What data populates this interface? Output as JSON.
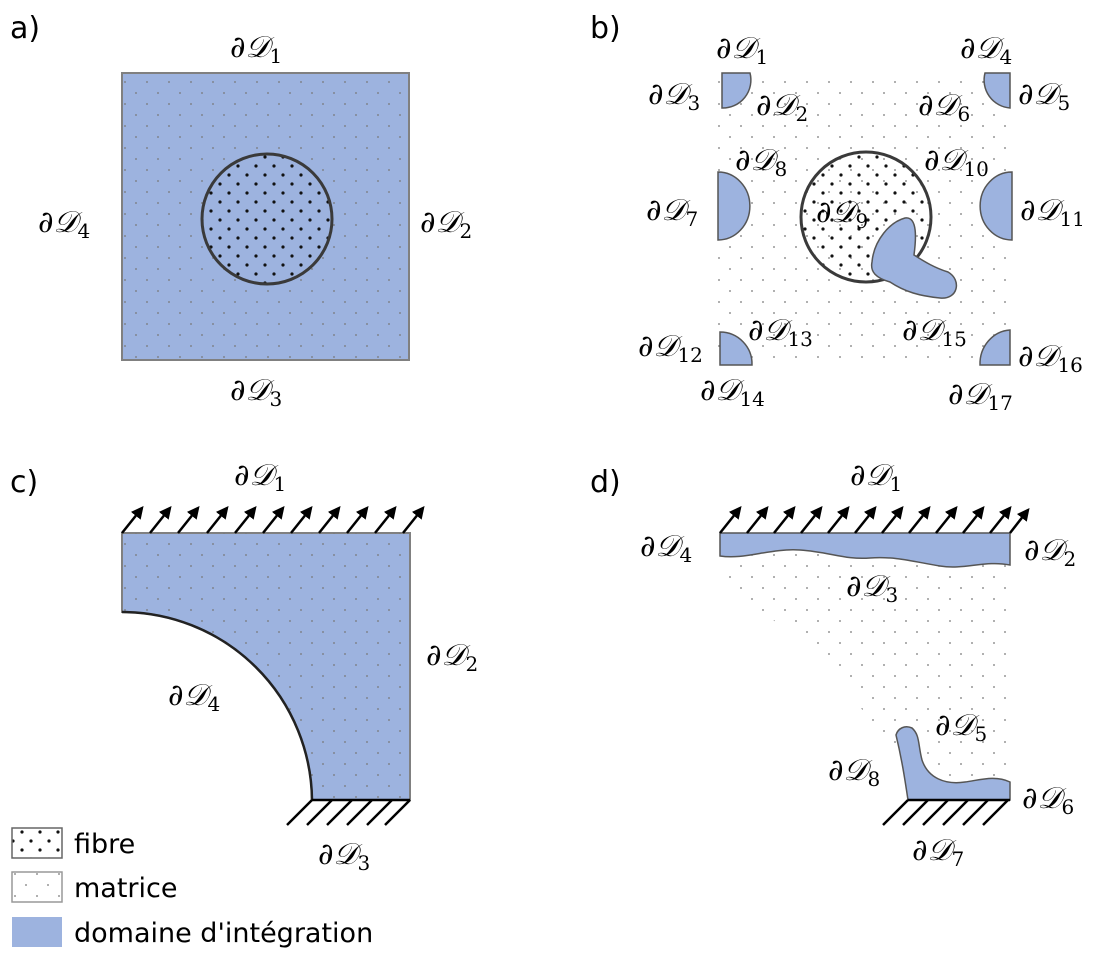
{
  "colors": {
    "domain": "#9db3df",
    "border": "#808080",
    "fibre_border": "#3a3a3a"
  },
  "panels": {
    "a": {
      "label": "a)",
      "boundaries": [
        "∂𝒟1",
        "∂𝒟2",
        "∂𝒟3",
        "∂𝒟4"
      ]
    },
    "b": {
      "label": "b)",
      "boundaries": [
        "∂𝒟1",
        "∂𝒟2",
        "∂𝒟3",
        "∂𝒟4",
        "∂𝒟5",
        "∂𝒟6",
        "∂𝒟7",
        "∂𝒟8",
        "∂𝒟9",
        "∂𝒟10",
        "∂𝒟11",
        "∂𝒟12",
        "∂𝒟13",
        "∂𝒟14",
        "∂𝒟15",
        "∂𝒟16",
        "∂𝒟17"
      ]
    },
    "c": {
      "label": "c)",
      "boundaries": [
        "∂𝒟1",
        "∂𝒟2",
        "∂𝒟3",
        "∂𝒟4"
      ]
    },
    "d": {
      "label": "d)",
      "boundaries": [
        "∂𝒟1",
        "∂𝒟2",
        "∂𝒟3",
        "∂𝒟4",
        "∂𝒟5",
        "∂𝒟6",
        "∂𝒟7",
        "∂𝒟8"
      ]
    }
  },
  "legend": {
    "fibre": "fibre",
    "matrice": "matrice",
    "domaine": "domaine d'intégration"
  }
}
